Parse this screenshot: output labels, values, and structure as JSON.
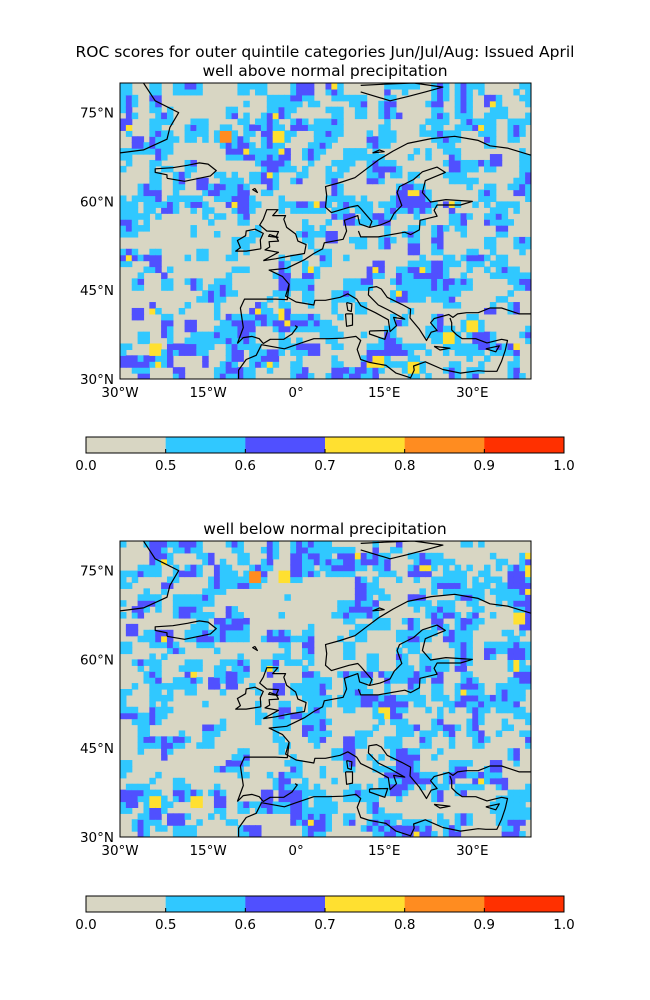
{
  "figure": {
    "title_line1": "ROC scores for outer quintile categories Jun/Jul/Aug: Issued April"
  },
  "colors": {
    "levels": [
      "#d8d6c3",
      "#30c8ff",
      "#5050ff",
      "#ffe030",
      "#ff8c20",
      "#ff3000"
    ],
    "coast": "#000000"
  },
  "chart_data": [
    {
      "type": "heatmap",
      "title": "well above normal precipitation",
      "xlabel": "",
      "ylabel": "",
      "xlim": [
        -30,
        40
      ],
      "ylim": [
        30,
        80
      ],
      "x_ticks": [
        -30,
        -15,
        0,
        15,
        30
      ],
      "x_tick_labels": [
        "30°W",
        "15°W",
        "0°",
        "15°E",
        "30°E"
      ],
      "y_ticks": [
        30,
        45,
        60,
        75
      ],
      "y_tick_labels": [
        "30°N",
        "45°N",
        "60°N",
        "75°N"
      ],
      "colorbar": {
        "bounds": [
          0.0,
          0.5,
          0.6,
          0.7,
          0.8,
          0.9,
          1.0
        ],
        "tick_labels": [
          "0.0",
          "0.5",
          "0.6",
          "0.7",
          "0.8",
          "0.9",
          "1.0"
        ]
      },
      "hotspots": [
        {
          "lon": -12,
          "lat": 71,
          "value": 0.92
        },
        {
          "lon": -3,
          "lat": 71,
          "value": 0.8
        },
        {
          "lon": -27,
          "lat": 70,
          "value": 0.73
        },
        {
          "lon": 34,
          "lat": 67,
          "value": 0.75
        },
        {
          "lon": -16,
          "lat": 63,
          "value": 0.72
        },
        {
          "lon": 9,
          "lat": 57,
          "value": 0.72
        },
        {
          "lon": 6,
          "lat": 54,
          "value": 0.74
        },
        {
          "lon": 14,
          "lat": 49,
          "value": 0.72
        },
        {
          "lon": 20,
          "lat": 52,
          "value": 0.7
        },
        {
          "lon": 30,
          "lat": 39,
          "value": 0.8
        },
        {
          "lon": 26,
          "lat": 37,
          "value": 0.82
        },
        {
          "lon": 14,
          "lat": 33,
          "value": 0.85
        },
        {
          "lon": 20,
          "lat": 32,
          "value": 0.85
        },
        {
          "lon": -4,
          "lat": 34,
          "value": 0.75
        },
        {
          "lon": -24,
          "lat": 35,
          "value": 0.78
        },
        {
          "lon": -27,
          "lat": 41,
          "value": 0.75
        },
        {
          "lon": -18,
          "lat": 39,
          "value": 0.72
        },
        {
          "lon": -10,
          "lat": 34,
          "value": 0.72
        },
        {
          "lon": 3,
          "lat": 35,
          "value": 0.7
        }
      ]
    },
    {
      "type": "heatmap",
      "title": "well below normal precipitation",
      "xlabel": "",
      "ylabel": "",
      "xlim": [
        -30,
        40
      ],
      "ylim": [
        30,
        80
      ],
      "x_ticks": [
        -30,
        -15,
        0,
        15,
        30
      ],
      "x_tick_labels": [
        "30°W",
        "15°W",
        "0°",
        "15°E",
        "30°E"
      ],
      "y_ticks": [
        30,
        45,
        60,
        75
      ],
      "y_tick_labels": [
        "30°N",
        "45°N",
        "60°N",
        "75°N"
      ],
      "colorbar": {
        "bounds": [
          0.0,
          0.5,
          0.6,
          0.7,
          0.8,
          0.9,
          1.0
        ],
        "tick_labels": [
          "0.0",
          "0.5",
          "0.6",
          "0.7",
          "0.8",
          "0.9",
          "1.0"
        ]
      },
      "hotspots": [
        {
          "lon": -7,
          "lat": 74,
          "value": 0.93
        },
        {
          "lon": -2,
          "lat": 74,
          "value": 0.78
        },
        {
          "lon": 38,
          "lat": 67,
          "value": 0.78
        },
        {
          "lon": -28,
          "lat": 65,
          "value": 0.72
        },
        {
          "lon": -11,
          "lat": 56,
          "value": 0.75
        },
        {
          "lon": -14,
          "lat": 56,
          "value": 0.75
        },
        {
          "lon": -3,
          "lat": 55,
          "value": 0.7
        },
        {
          "lon": 28,
          "lat": 41,
          "value": 0.74
        },
        {
          "lon": 34,
          "lat": 42,
          "value": 0.75
        },
        {
          "lon": -24,
          "lat": 36,
          "value": 0.82
        },
        {
          "lon": -17,
          "lat": 36,
          "value": 0.78
        },
        {
          "lon": -21,
          "lat": 33,
          "value": 0.72
        },
        {
          "lon": -28,
          "lat": 36,
          "value": 0.72
        },
        {
          "lon": -5,
          "lat": 37,
          "value": 0.72
        }
      ]
    }
  ]
}
